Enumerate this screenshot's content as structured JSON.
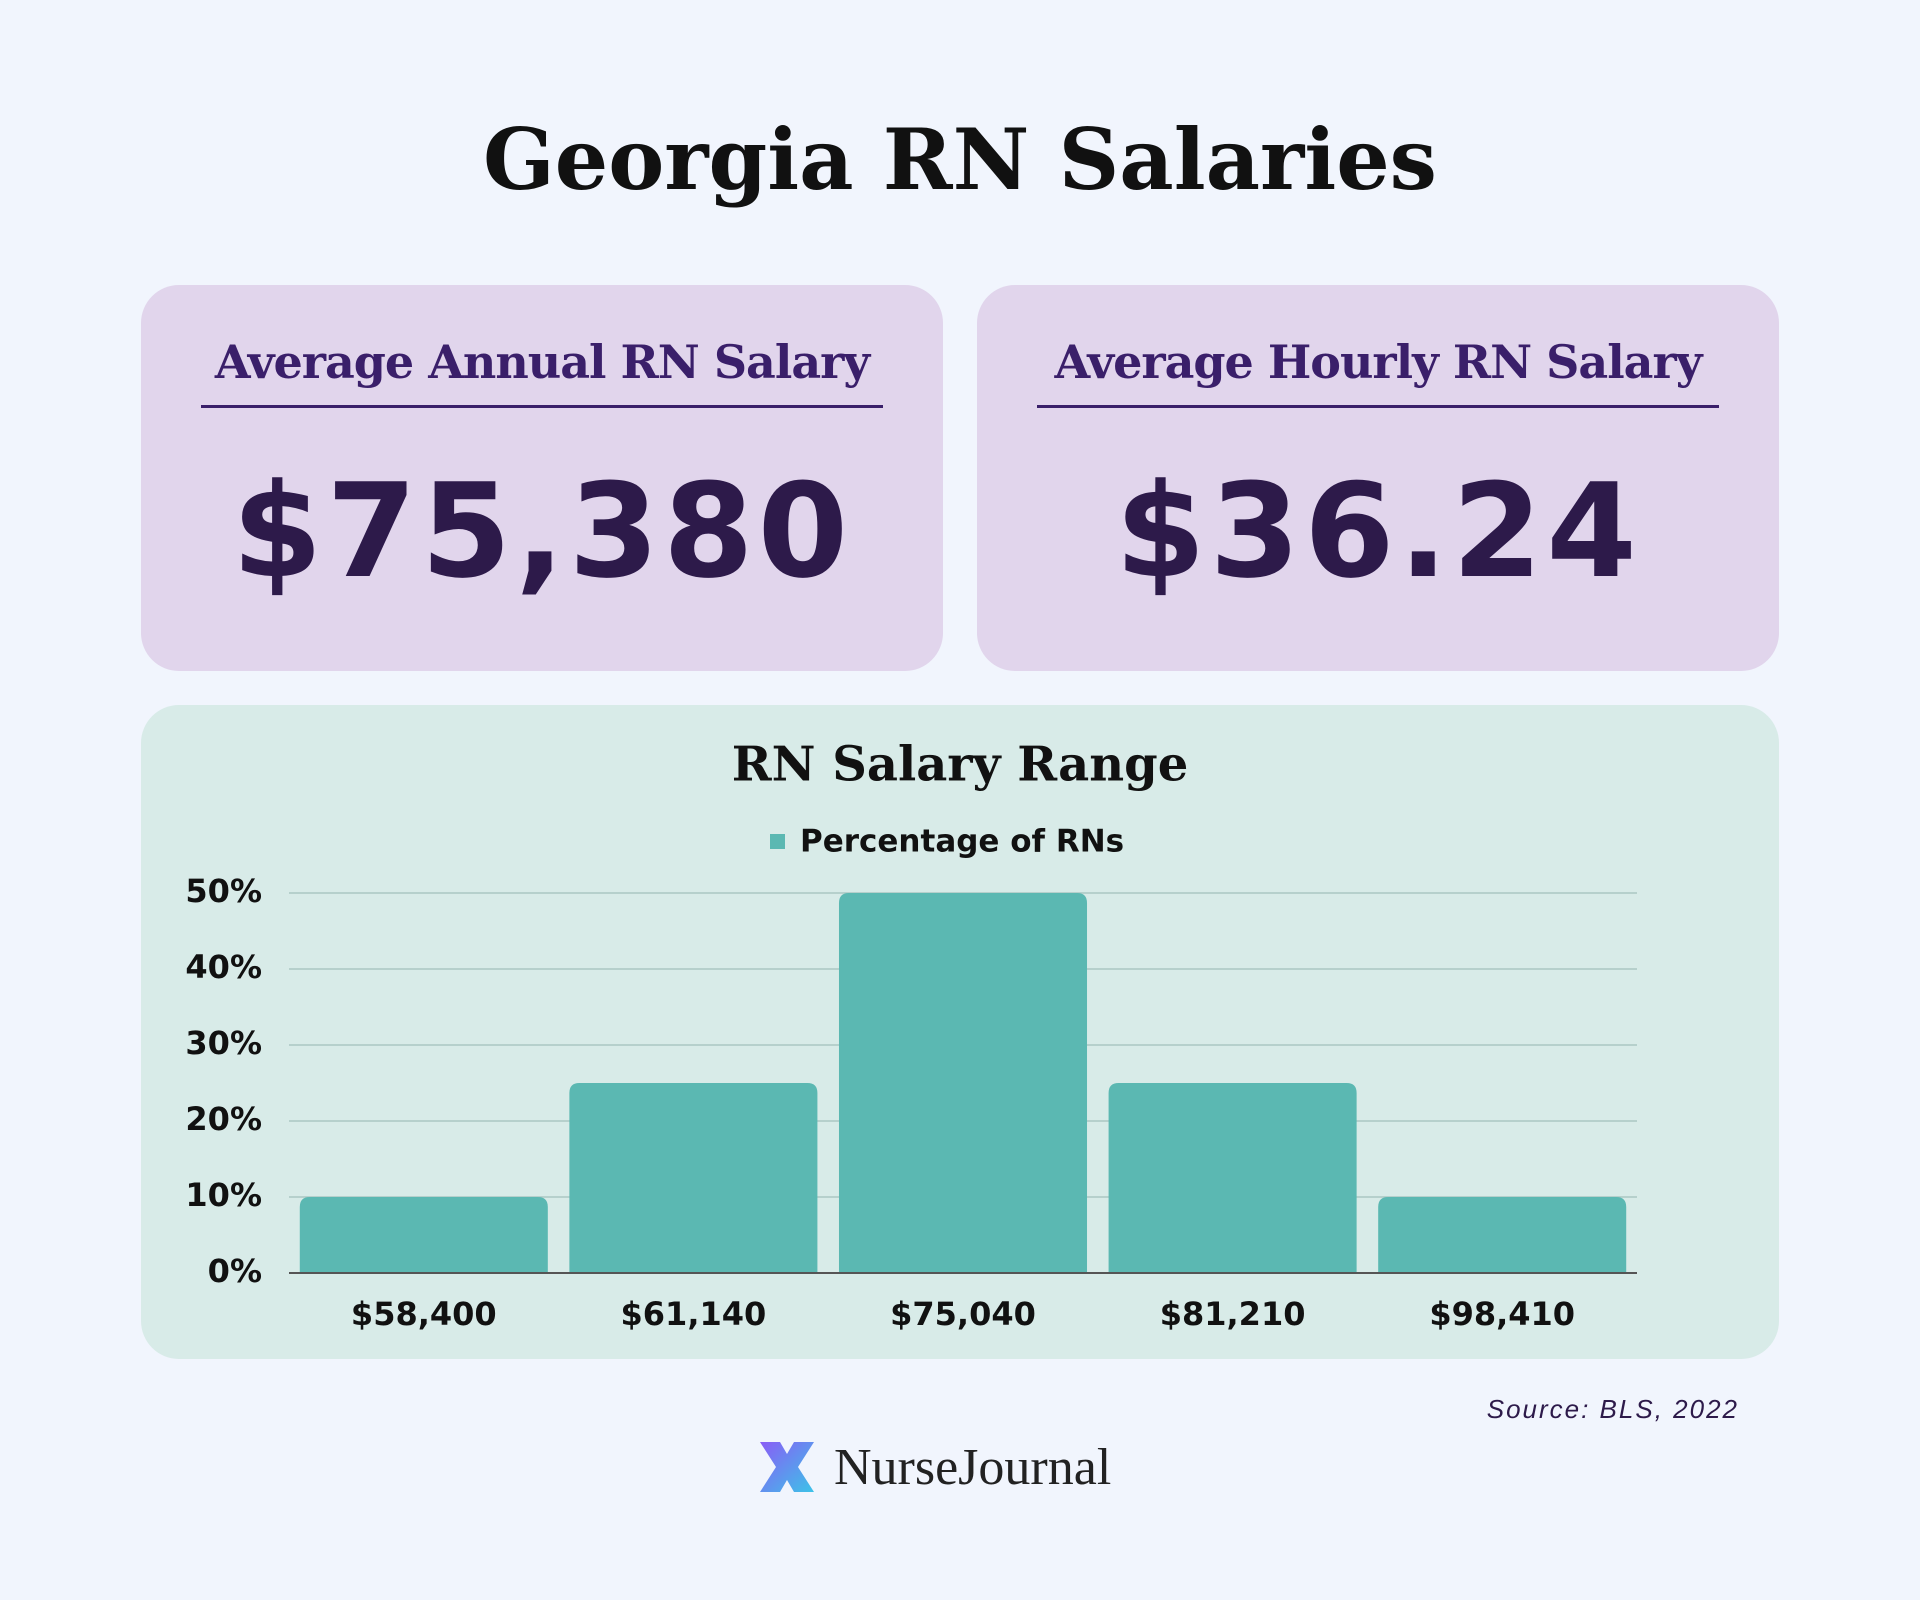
{
  "title": "Georgia RN Salaries",
  "cards": [
    {
      "label": "Average Annual RN Salary",
      "value": "$75,380"
    },
    {
      "label": "Average Hourly RN Salary",
      "value": "$36.24"
    }
  ],
  "chart_data": {
    "type": "bar",
    "title": "RN Salary Range",
    "categories": [
      "$58,400",
      "$61,140",
      "$75,040",
      "$81,210",
      "$98,410"
    ],
    "series": [
      {
        "name": "Percentage of RNs",
        "color": "#5bb8b2",
        "values": [
          10,
          25,
          50,
          25,
          10
        ]
      }
    ],
    "ylim": [
      0,
      50
    ],
    "yticks": [
      {
        "value": 0,
        "label": "0%"
      },
      {
        "value": 10,
        "label": "10%"
      },
      {
        "value": 20,
        "label": "20%"
      },
      {
        "value": 30,
        "label": "30%"
      },
      {
        "value": 40,
        "label": "40%"
      },
      {
        "value": 50,
        "label": "50%"
      }
    ],
    "grid": true,
    "legend": "top"
  },
  "source": "Source: BLS, 2022",
  "logo": "NurseJournal"
}
